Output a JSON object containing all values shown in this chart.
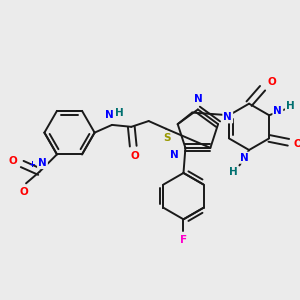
{
  "bg_color": "#ebebeb",
  "bond_color": "#1a1a1a",
  "bond_lw": 1.4,
  "atom_colors": {
    "N": "#0000ff",
    "O": "#ff0000",
    "S": "#999900",
    "F": "#ff00cc",
    "H": "#007070",
    "C": "#1a1a1a"
  },
  "fs": 7.5,
  "fs_small": 6.0
}
